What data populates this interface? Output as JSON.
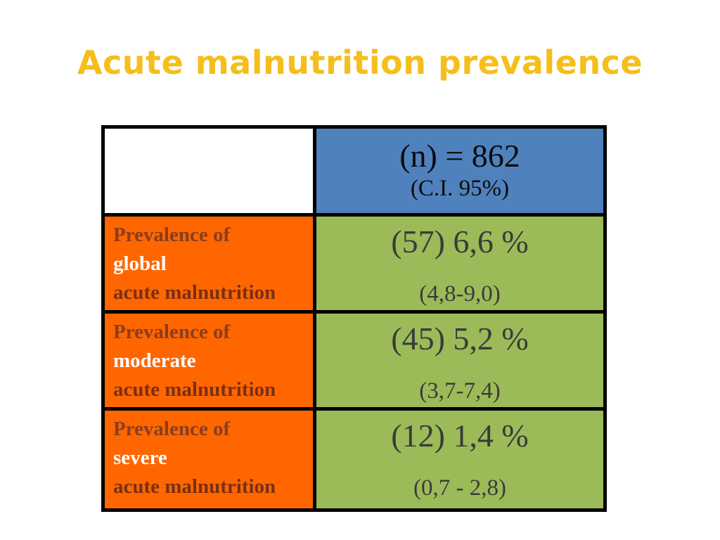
{
  "title": "Acute malnutrition prevalence",
  "header": {
    "n": "(n) = 862",
    "ci": "(C.I. 95%)"
  },
  "rows": [
    {
      "line1": "Prevalence of",
      "line2": "global",
      "line3": "acute malnutrition",
      "value": "(57) 6,6 %",
      "ci": "(4,8-9,0)"
    },
    {
      "line1": "Prevalence of",
      "line2": "moderate",
      "line3": "acute malnutrition",
      "value": "(45) 5,2 %",
      "ci": "(3,7-7,4)"
    },
    {
      "line1": "Prevalence of",
      "line2": "severe",
      "line3": "acute malnutrition",
      "value": "(12) 1,4 %",
      "ci": "(0,7 - 2,8)"
    }
  ],
  "colors": {
    "title": "#f5be1a",
    "header_bg": "#4f81bd",
    "label_bg": "#ff6600",
    "value_bg": "#9bbb59"
  }
}
